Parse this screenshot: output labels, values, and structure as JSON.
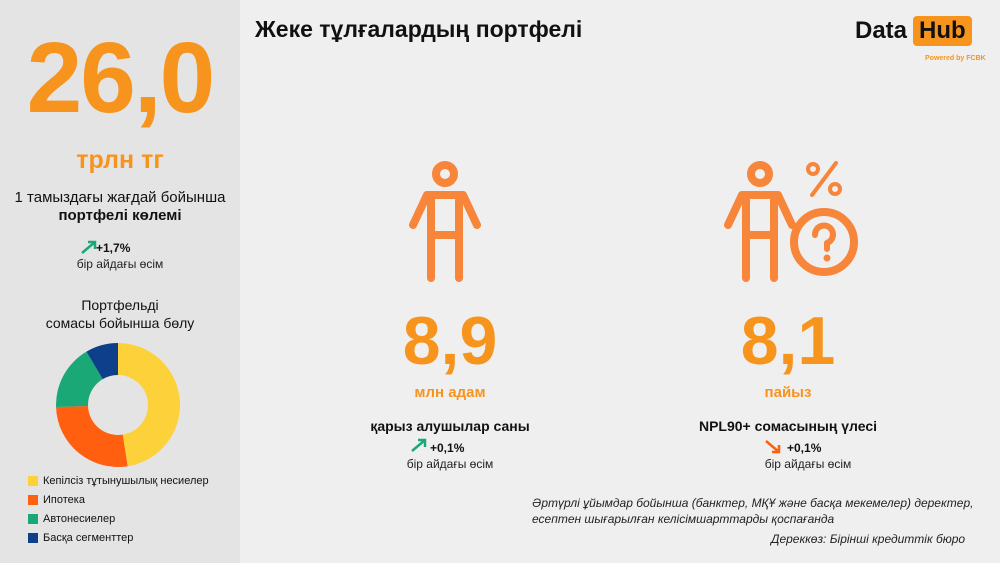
{
  "header": {
    "title": "Жеке тұлғалардың портфелі",
    "logo_data": "Data",
    "logo_hub": "Hub",
    "logo_powered": "Powered by FCBK"
  },
  "left": {
    "value": "26,0",
    "unit": "трлн тг",
    "caption_line1": "1 тамыздағы жағдай бойынша",
    "caption_line2": "портфелі көлемі",
    "change": "+1,7%",
    "change_label": "бір айдағы өсім",
    "change_direction": "up",
    "pie_title_line1": "Портфельді",
    "pie_title_line2": "сомасы бойынша бөлу"
  },
  "chart_data": {
    "type": "pie",
    "donut": true,
    "categories": [
      "Кепілсіз тұтынушылық несиелер",
      "Ипотека",
      "Автонесиелер",
      "Басқа сегменттер"
    ],
    "values": [
      47.5,
      27,
      17,
      8.5
    ],
    "colors": [
      "#fdd13a",
      "#ff5f0f",
      "#1aa876",
      "#0d3f8a"
    ],
    "legend": "bottom"
  },
  "metrics": [
    {
      "value": "8,9",
      "unit": "млн адам",
      "label": "қарыз алушылар саны",
      "change": "+0,1%",
      "change_label": "бір айдағы өсім",
      "change_direction": "up",
      "icon": "person-icon"
    },
    {
      "value": "8,1",
      "unit": "пайыз",
      "label": "NPL90+ сомасының үлесі",
      "change": "+0,1%",
      "change_label": "бір айдағы өсім",
      "change_direction": "down",
      "icon": "person-percent-question-icon"
    }
  ],
  "footer": {
    "note_line1": "Әртүрлі ұйымдар бойынша (банктер, МҚҰ және басқа мекемелер) деректер,",
    "note_line2": "есептен шығарылған келісімшарттарды қоспағанда",
    "source": "Дереккөз: Бірінші кредиттік бюро"
  },
  "colors": {
    "accent": "#f7941d",
    "up": "#1aa876",
    "down": "#ff5f0f"
  }
}
